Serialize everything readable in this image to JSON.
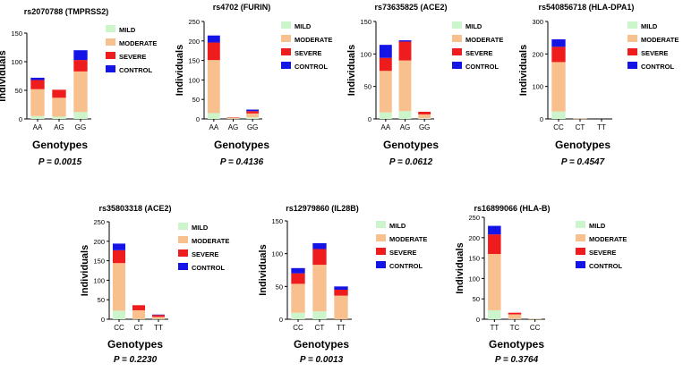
{
  "colors": {
    "MILD": "#ccf5cc",
    "MODERATE": "#f8c08e",
    "SEVERE": "#ee1c1c",
    "CONTROL": "#1414e6"
  },
  "legend_order": [
    "CONTROL",
    "SEVERE",
    "MODERATE",
    "MILD"
  ],
  "chart_data": [
    {
      "type": "bar",
      "stacked": true,
      "title": "rs2070788 (TMPRSS2)",
      "xlabel": "Genotypes",
      "ylabel": "Individuals",
      "pvalue": "P = 0.0015",
      "ylim": [
        0,
        150
      ],
      "yticks": [
        0,
        50,
        100,
        150
      ],
      "categories": [
        "AA",
        "AG",
        "GG"
      ],
      "legend": [
        "MILD",
        "MODERATE",
        "SEVERE",
        "CONTROL"
      ],
      "series": [
        {
          "name": "MILD",
          "values": [
            5,
            4,
            12
          ]
        },
        {
          "name": "MODERATE",
          "values": [
            47,
            33,
            71
          ]
        },
        {
          "name": "SEVERE",
          "values": [
            16,
            14,
            20
          ]
        },
        {
          "name": "CONTROL",
          "values": [
            4,
            0,
            17
          ]
        }
      ]
    },
    {
      "type": "bar",
      "stacked": true,
      "title": "rs4702 (FURIN)",
      "xlabel": "Genotypes",
      "ylabel": "Individuals",
      "pvalue": "P = 0.4136",
      "ylim": [
        0,
        250
      ],
      "yticks": [
        0,
        50,
        100,
        150,
        200,
        250
      ],
      "categories": [
        "AA",
        "AG",
        "GG"
      ],
      "legend": [
        "MILD",
        "MODERATE",
        "SEVERE",
        "CONTROL"
      ],
      "series": [
        {
          "name": "MILD",
          "values": [
            15,
            1,
            4
          ]
        },
        {
          "name": "MODERATE",
          "values": [
            136,
            2,
            10
          ]
        },
        {
          "name": "SEVERE",
          "values": [
            45,
            1,
            6
          ]
        },
        {
          "name": "CONTROL",
          "values": [
            18,
            0,
            4
          ]
        }
      ]
    },
    {
      "type": "bar",
      "stacked": true,
      "title": "rs73635825 (ACE2)",
      "xlabel": "Genotypes",
      "ylabel": "Individuals",
      "pvalue": "P = 0.0612",
      "ylim": [
        0,
        150
      ],
      "yticks": [
        0,
        50,
        100,
        150
      ],
      "categories": [
        "AA",
        "AG",
        "GG"
      ],
      "legend": [
        "MILD",
        "MODERATE",
        "SEVERE",
        "CONTROL"
      ],
      "series": [
        {
          "name": "MILD",
          "values": [
            10,
            12,
            1
          ]
        },
        {
          "name": "MODERATE",
          "values": [
            64,
            78,
            6
          ]
        },
        {
          "name": "SEVERE",
          "values": [
            20,
            29,
            4
          ]
        },
        {
          "name": "CONTROL",
          "values": [
            20,
            2,
            0
          ]
        }
      ]
    },
    {
      "type": "bar",
      "stacked": true,
      "title": "rs540856718 (HLA-DPA1)",
      "xlabel": "Genotypes",
      "ylabel": "Individuals",
      "pvalue": "P = 0.4547",
      "ylim": [
        0,
        300
      ],
      "yticks": [
        0,
        100,
        200,
        300
      ],
      "categories": [
        "CC",
        "CT",
        "TT"
      ],
      "legend": [
        "MILD",
        "MODERATE",
        "SEVERE",
        "CONTROL"
      ],
      "series": [
        {
          "name": "MILD",
          "values": [
            23,
            0,
            0
          ]
        },
        {
          "name": "MODERATE",
          "values": [
            152,
            1,
            0
          ]
        },
        {
          "name": "SEVERE",
          "values": [
            47,
            0,
            0
          ]
        },
        {
          "name": "CONTROL",
          "values": [
            23,
            0,
            0
          ]
        }
      ]
    },
    {
      "type": "bar",
      "stacked": true,
      "title": "rs35803318 (ACE2)",
      "xlabel": "Genotypes",
      "ylabel": "Individuals",
      "pvalue": "P = 0.2230",
      "ylim": [
        0,
        250
      ],
      "yticks": [
        0,
        50,
        100,
        150,
        200,
        250
      ],
      "categories": [
        "CC",
        "CT",
        "TT"
      ],
      "legend": [
        "MILD",
        "MODERATE",
        "SEVERE",
        "CONTROL"
      ],
      "series": [
        {
          "name": "MILD",
          "values": [
            22,
            1,
            1
          ]
        },
        {
          "name": "MODERATE",
          "values": [
            122,
            22,
            5
          ]
        },
        {
          "name": "SEVERE",
          "values": [
            33,
            13,
            5
          ]
        },
        {
          "name": "CONTROL",
          "values": [
            17,
            0,
            1
          ]
        }
      ]
    },
    {
      "type": "bar",
      "stacked": true,
      "title": "rs12979860 (IL28B)",
      "xlabel": "Genotypes",
      "ylabel": "Individuals",
      "pvalue": "P = 0.0013",
      "ylim": [
        0,
        150
      ],
      "yticks": [
        0,
        50,
        100,
        150
      ],
      "categories": [
        "CC",
        "CT",
        "TT"
      ],
      "legend": [
        "MILD",
        "MODERATE",
        "SEVERE",
        "CONTROL"
      ],
      "series": [
        {
          "name": "MILD",
          "values": [
            10,
            12,
            0
          ]
        },
        {
          "name": "MODERATE",
          "values": [
            44,
            71,
            36
          ]
        },
        {
          "name": "SEVERE",
          "values": [
            16,
            24,
            9
          ]
        },
        {
          "name": "CONTROL",
          "values": [
            8,
            9,
            5
          ]
        }
      ]
    },
    {
      "type": "bar",
      "stacked": true,
      "title": "rs16899066 (HLA-B)",
      "xlabel": "Genotypes",
      "ylabel": "Individuals",
      "pvalue": "P = 0.3764",
      "ylim": [
        0,
        250
      ],
      "yticks": [
        0,
        50,
        100,
        150,
        200,
        250
      ],
      "categories": [
        "TT",
        "TC",
        "CC"
      ],
      "legend": [
        "MILD",
        "MODERATE",
        "SEVERE",
        "CONTROL"
      ],
      "series": [
        {
          "name": "MILD",
          "values": [
            22,
            1,
            0
          ]
        },
        {
          "name": "MODERATE",
          "values": [
            138,
            11,
            1
          ]
        },
        {
          "name": "SEVERE",
          "values": [
            48,
            4,
            0
          ]
        },
        {
          "name": "CONTROL",
          "values": [
            21,
            0,
            0
          ]
        }
      ]
    }
  ]
}
